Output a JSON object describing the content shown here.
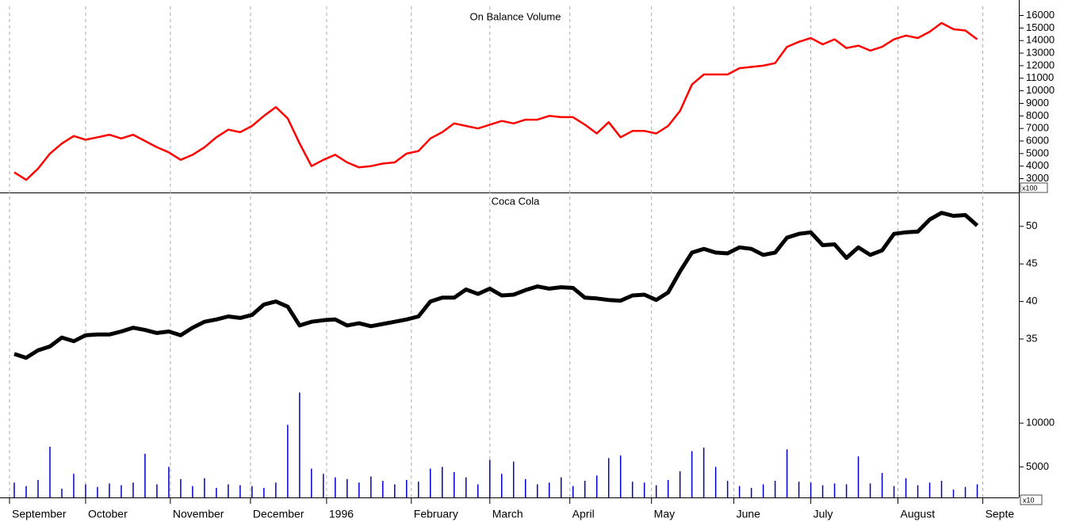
{
  "chart_data": [
    {
      "type": "line",
      "title": "On Balance Volume",
      "unit_label": "x100",
      "color": "#ff0000",
      "values": [
        3500,
        2900,
        3800,
        5000,
        5800,
        6400,
        6100,
        6300,
        6500,
        6200,
        6500,
        6000,
        5500,
        5100,
        4500,
        4900,
        5500,
        6300,
        6900,
        6700,
        7200,
        8000,
        8700,
        7800,
        5800,
        4000,
        4500,
        4900,
        4300,
        3900,
        4000,
        4200,
        4300,
        5000,
        5200,
        6200,
        6700,
        7400,
        7200,
        7000,
        7300,
        7600,
        7400,
        7700,
        7700,
        8000,
        7900,
        7900,
        7300,
        6600,
        7500,
        6300,
        6800,
        6800,
        6600,
        7200,
        8400,
        10500,
        11300,
        11300,
        11300,
        11800,
        11900,
        12000,
        12200,
        13500,
        13900,
        14200,
        13700,
        14100,
        13400,
        13600,
        13200,
        13500,
        14100,
        14400,
        14200,
        14700,
        15400,
        14900,
        14800,
        14100
      ],
      "ylim": [
        1900,
        16600
      ],
      "yticks": [
        3000,
        4000,
        5000,
        6000,
        7000,
        8000,
        9000,
        10000,
        11000,
        12000,
        13000,
        14000,
        15000,
        16000
      ]
    },
    {
      "type": "line",
      "title": "Coca Cola",
      "color": "#000000",
      "values": [
        33,
        32.5,
        33.5,
        34,
        35.2,
        34.7,
        35.5,
        35.6,
        35.6,
        36,
        36.5,
        36.2,
        35.8,
        36,
        35.5,
        36.5,
        37.3,
        37.6,
        38,
        37.8,
        38.2,
        39.6,
        40,
        39.3,
        36.8,
        37.3,
        37.5,
        37.6,
        36.8,
        37.1,
        36.7,
        37,
        37.3,
        37.6,
        38,
        40,
        40.5,
        40.5,
        41.6,
        41,
        41.7,
        40.8,
        40.9,
        41.5,
        42,
        41.7,
        41.9,
        41.8,
        40.5,
        40.4,
        40.2,
        40.1,
        40.8,
        40.9,
        40.2,
        41.2,
        44,
        46.5,
        47,
        46.5,
        46.4,
        47.2,
        47,
        46.2,
        46.5,
        48.5,
        49,
        49.2,
        47.5,
        47.6,
        45.8,
        47.2,
        46.2,
        46.8,
        49,
        49.2,
        49.3,
        50.9,
        51.8,
        51.4,
        51.5,
        50.1
      ],
      "ylim": [
        29.3,
        54.3
      ],
      "yticks": [
        35,
        40,
        45,
        50
      ]
    },
    {
      "type": "bar",
      "unit_label": "x10",
      "color": "#0000cc",
      "values": [
        3200,
        2800,
        3500,
        7300,
        2500,
        4200,
        3000,
        2700,
        3100,
        2900,
        3200,
        6500,
        3000,
        5000,
        3600,
        2800,
        3700,
        2600,
        3000,
        2900,
        2800,
        2600,
        3200,
        9800,
        13500,
        4800,
        4200,
        3800,
        3600,
        3200,
        3900,
        3400,
        3000,
        3500,
        3300,
        4800,
        5000,
        4400,
        3800,
        3000,
        5800,
        4200,
        5600,
        3600,
        3000,
        3200,
        3800,
        2800,
        3400,
        4000,
        6000,
        6300,
        3300,
        3200,
        2900,
        3500,
        4500,
        6800,
        7200,
        5000,
        3400,
        2800,
        2600,
        3000,
        3400,
        7000,
        3300,
        3200,
        2900,
        3100,
        3000,
        6200,
        3100,
        4300,
        2800,
        3700,
        2900,
        3200,
        3400,
        2400,
        2700,
        3000
      ],
      "ylim": [
        1500,
        14000
      ],
      "yticks": [
        5000,
        10000
      ],
      "xlim": [
        -0.4,
        84.5
      ],
      "grid": true,
      "xticks": [
        {
          "value": -0.4,
          "label": "September"
        },
        {
          "value": 6,
          "label": "October"
        },
        {
          "value": 13.13,
          "label": "November"
        },
        {
          "value": 19.87,
          "label": "December"
        },
        {
          "value": 26.27,
          "label": "1996"
        },
        {
          "value": 33.4,
          "label": "February"
        },
        {
          "value": 40,
          "label": "March"
        },
        {
          "value": 46.73,
          "label": "April"
        },
        {
          "value": 53.6,
          "label": "May"
        },
        {
          "value": 60.53,
          "label": "June"
        },
        {
          "value": 67,
          "label": "July"
        },
        {
          "value": 74.33,
          "label": "August"
        },
        {
          "value": 81.47,
          "label": "Septe"
        }
      ]
    }
  ]
}
